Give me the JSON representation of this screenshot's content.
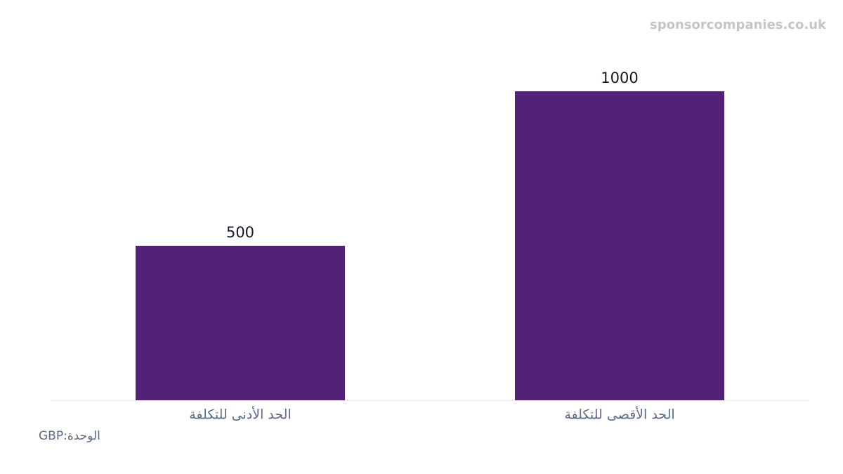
{
  "chart_data": {
    "type": "bar",
    "watermark": "sponsorcompanies.co.uk",
    "unit_label": "GBP:الوحدة",
    "categories": [
      "الحد الأدنى للتكلفة",
      "الحد الأقصى للتكلفة"
    ],
    "values": [
      500,
      1000
    ],
    "color": "#522276"
  }
}
